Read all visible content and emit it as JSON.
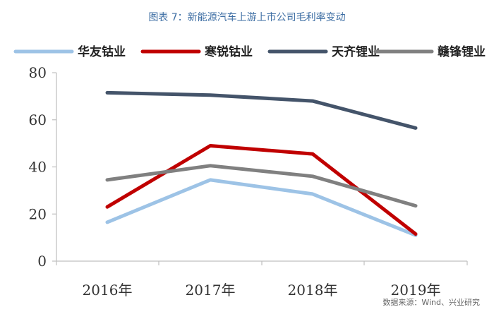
{
  "chart_data": {
    "type": "line",
    "title": "图表 7：新能源汽车上游上市公司毛利率变动",
    "categories": [
      "2016年",
      "2017年",
      "2018年",
      "2019年"
    ],
    "yticks": [
      0,
      20,
      40,
      60,
      80
    ],
    "ylim": [
      0,
      80
    ],
    "grid": false,
    "legend_position": "top",
    "series": [
      {
        "name": "华友钴业",
        "color": "#9dc3e6",
        "values": [
          16.5,
          34.5,
          28.5,
          11.0
        ]
      },
      {
        "name": "寒锐钴业",
        "color": "#c00000",
        "values": [
          23.0,
          49.0,
          45.5,
          11.5
        ]
      },
      {
        "name": "天齐锂业",
        "color": "#44546a",
        "values": [
          71.5,
          70.5,
          68.0,
          56.5
        ]
      },
      {
        "name": "赣锋锂业",
        "color": "#808080",
        "values": [
          34.5,
          40.5,
          36.0,
          23.5
        ]
      }
    ]
  },
  "source_note": "数据来源：Wind、兴业研究"
}
